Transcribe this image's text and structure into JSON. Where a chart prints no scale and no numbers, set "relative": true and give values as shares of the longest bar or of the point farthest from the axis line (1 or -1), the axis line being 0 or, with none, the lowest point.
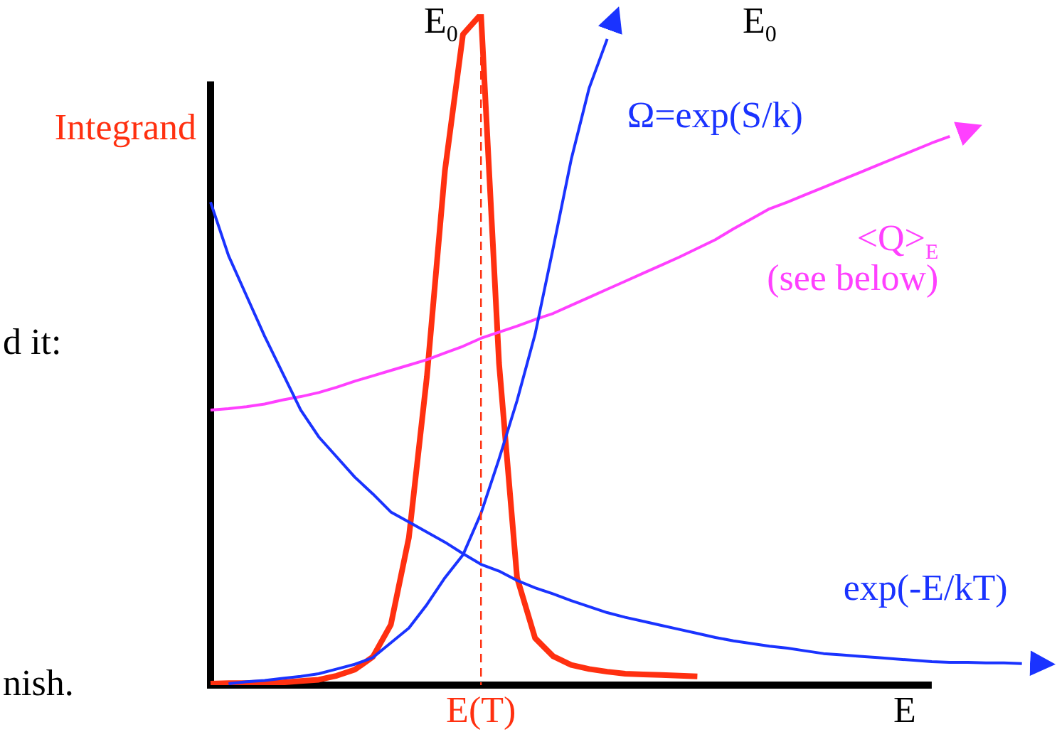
{
  "chart_data": {
    "type": "line",
    "relative": true,
    "xlabel": "E",
    "legend": false,
    "categories": [
      null,
      null,
      null,
      null,
      null,
      null,
      null,
      null,
      null,
      null,
      null,
      null,
      null,
      null,
      null,
      null,
      null,
      null,
      null,
      null,
      null,
      null,
      null,
      null,
      null,
      null,
      null,
      null,
      null,
      null,
      null,
      null,
      null,
      null,
      null,
      null,
      null,
      null,
      null,
      null,
      null,
      null,
      null,
      null,
      null,
      null,
      null
    ],
    "series": [
      {
        "name": "Integrand",
        "color": "#ff3010",
        "values": [
          0.002,
          0.003,
          0.003,
          0.004,
          0.004,
          0.006,
          0.008,
          0.014,
          0.023,
          0.042,
          0.09,
          0.22,
          0.46,
          0.767,
          0.97,
          1,
          0.48,
          0.16,
          0.07,
          0.043,
          0.03,
          0.024,
          0.02,
          0.017,
          0.016,
          0.015,
          0.014,
          0.013,
          null,
          null,
          null,
          null,
          null,
          null,
          null,
          null,
          null,
          null,
          null,
          null,
          null,
          null,
          null,
          null,
          null,
          null,
          null
        ]
      },
      {
        "name": "Ω=exp(S/k)",
        "color": "#1a33ff",
        "values": [
          null,
          0.002,
          0.005,
          0.007,
          0.01,
          0.013,
          0.017,
          0.024,
          0.031,
          0.041,
          0.063,
          0.085,
          0.12,
          0.16,
          0.194,
          0.256,
          0.337,
          0.424,
          0.523,
          0.651,
          0.783,
          0.89,
          0.963,
          null,
          null,
          null,
          null,
          null,
          null,
          null,
          null,
          null,
          null,
          null,
          null,
          null,
          null,
          null,
          null,
          null,
          null,
          null,
          null,
          null,
          null,
          null,
          null
        ]
      },
      {
        "name": "exp(-E/kT)",
        "color": "#1a33ff",
        "values": [
          0.72,
          0.64,
          0.58,
          0.52,
          0.465,
          0.41,
          0.37,
          0.34,
          0.31,
          0.285,
          0.258,
          0.243,
          0.228,
          0.213,
          0.196,
          0.18,
          0.17,
          0.156,
          0.145,
          0.136,
          0.126,
          0.117,
          0.108,
          0.101,
          0.095,
          0.089,
          0.083,
          0.077,
          0.071,
          0.066,
          0.062,
          0.058,
          0.055,
          0.051,
          0.047,
          0.045,
          0.043,
          0.041,
          0.039,
          0.037,
          0.035,
          0.034,
          0.034,
          0.033,
          0.033,
          0.032,
          null
        ]
      },
      {
        "name": "<Q>$_{E}$\n(see below)",
        "color": "#ff40ff",
        "values": [
          0.41,
          0.412,
          0.415,
          0.419,
          0.425,
          0.43,
          0.436,
          0.444,
          0.453,
          0.461,
          0.469,
          0.477,
          0.485,
          0.495,
          0.505,
          0.517,
          0.526,
          0.535,
          0.545,
          0.554,
          0.566,
          0.578,
          0.59,
          0.602,
          0.614,
          0.626,
          0.638,
          0.651,
          0.664,
          0.68,
          0.695,
          0.71,
          0.72,
          0.731,
          0.742,
          0.753,
          0.764,
          0.775,
          0.786,
          0.797,
          0.808,
          0.818,
          null,
          null,
          null,
          null,
          null
        ]
      }
    ],
    "ref_lines": [
      {
        "axis": "x",
        "label": "E(T)",
        "color": "#ff3010",
        "line_style": "dashed"
      }
    ],
    "annotations": [
      "E$_{0}$",
      "E$_{0}$",
      "d it:",
      "nish."
    ]
  }
}
